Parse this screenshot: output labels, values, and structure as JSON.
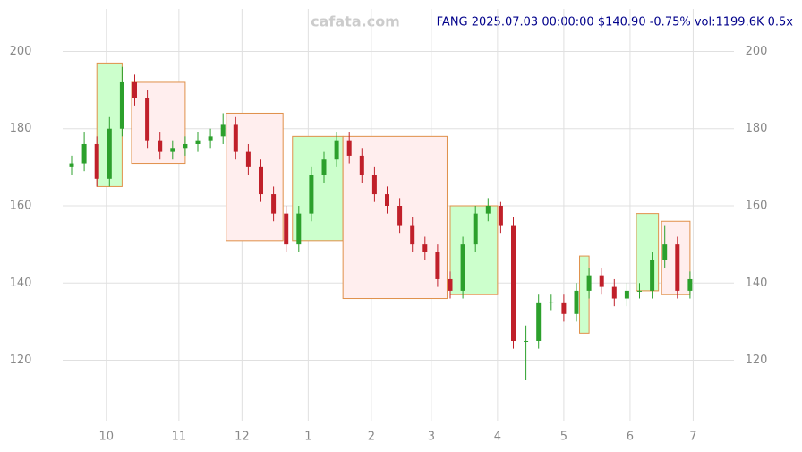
{
  "chart_data": {
    "type": "candlestick",
    "title": "FANG 2025.07.03 00:00:00 $140.90 -0.75% vol:1199.6K 0.5x",
    "watermark": "cafata.com",
    "xlim": [
      0,
      200
    ],
    "xticks": [
      {
        "value": 11,
        "label": "10"
      },
      {
        "value": 34,
        "label": "11"
      },
      {
        "value": 54,
        "label": "12"
      },
      {
        "value": 75,
        "label": "1"
      },
      {
        "value": 95,
        "label": "2"
      },
      {
        "value": 114,
        "label": "3"
      },
      {
        "value": 135,
        "label": "4"
      },
      {
        "value": 156,
        "label": "5"
      },
      {
        "value": 177,
        "label": "6"
      },
      {
        "value": 197,
        "label": "7"
      }
    ],
    "ylim": [
      109,
      211
    ],
    "yticks": [
      120,
      140,
      160,
      180,
      200
    ],
    "grid": true,
    "up_color": "#2ca02c",
    "down_color": "#c0202a",
    "x": [
      0,
      4,
      8,
      12,
      16,
      20,
      24,
      28,
      32,
      36,
      40,
      44,
      48,
      52,
      56,
      60,
      64,
      68,
      72,
      76,
      80,
      84,
      88,
      92,
      96,
      100,
      104,
      108,
      112,
      116,
      120,
      124,
      128,
      132,
      136,
      140,
      144,
      148,
      152,
      156,
      160,
      164,
      168,
      172,
      176,
      180,
      184,
      188,
      192,
      196
    ],
    "open": [
      170,
      171,
      176,
      167,
      180,
      192,
      188,
      177,
      174,
      175,
      176,
      177,
      178,
      181,
      174,
      170,
      163,
      158,
      150,
      158,
      168,
      172,
      177,
      173,
      168,
      163,
      160,
      155,
      150,
      148,
      141,
      138,
      150,
      158,
      160,
      155,
      125,
      125,
      135,
      135,
      132,
      138,
      142,
      139,
      136,
      138,
      138,
      146,
      150,
      138
    ],
    "close": [
      171,
      176,
      167,
      180,
      192,
      188,
      177,
      174,
      175,
      176,
      177,
      178,
      181,
      174,
      170,
      163,
      158,
      150,
      158,
      168,
      172,
      177,
      173,
      168,
      163,
      160,
      155,
      150,
      148,
      141,
      138,
      150,
      158,
      160,
      155,
      125,
      125,
      135,
      135,
      132,
      138,
      142,
      139,
      136,
      138,
      138,
      146,
      150,
      138,
      141
    ],
    "high": [
      173,
      179,
      178,
      183,
      196,
      194,
      190,
      179,
      177,
      178,
      179,
      180,
      184,
      183,
      176,
      172,
      165,
      160,
      160,
      170,
      174,
      179,
      179,
      175,
      170,
      165,
      162,
      157,
      152,
      150,
      143,
      152,
      160,
      162,
      161,
      157,
      129,
      137,
      137,
      137,
      140,
      144,
      144,
      141,
      140,
      140,
      148,
      155,
      152,
      143
    ],
    "low": [
      168,
      169,
      165,
      165,
      178,
      186,
      175,
      172,
      172,
      173,
      174,
      175,
      176,
      172,
      168,
      161,
      156,
      148,
      148,
      156,
      166,
      170,
      171,
      166,
      161,
      158,
      153,
      148,
      146,
      139,
      136,
      136,
      148,
      156,
      153,
      123,
      115,
      123,
      133,
      130,
      130,
      136,
      137,
      134,
      134,
      136,
      136,
      144,
      136,
      136
    ],
    "boxes": [
      {
        "start": 8,
        "end": 16,
        "lo": 165,
        "hi": 197,
        "color": "#ccffcc"
      },
      {
        "start": 19,
        "end": 36,
        "lo": 171,
        "hi": 192,
        "color": "#ffeeee"
      },
      {
        "start": 49,
        "end": 67,
        "lo": 151,
        "hi": 184,
        "color": "#ffeeee"
      },
      {
        "start": 70,
        "end": 86,
        "lo": 151,
        "hi": 178,
        "color": "#ccffcc"
      },
      {
        "start": 86,
        "end": 119,
        "lo": 136,
        "hi": 178,
        "color": "#ffeeee"
      },
      {
        "start": 120,
        "end": 135,
        "lo": 137,
        "hi": 160,
        "color": "#ccffcc"
      },
      {
        "start": 161,
        "end": 164,
        "lo": 127,
        "hi": 147,
        "color": "#ccffcc"
      },
      {
        "start": 179,
        "end": 186,
        "lo": 138,
        "hi": 158,
        "color": "#ccffcc"
      },
      {
        "start": 187,
        "end": 196,
        "lo": 137,
        "hi": 156,
        "color": "#ffeeee"
      }
    ]
  }
}
